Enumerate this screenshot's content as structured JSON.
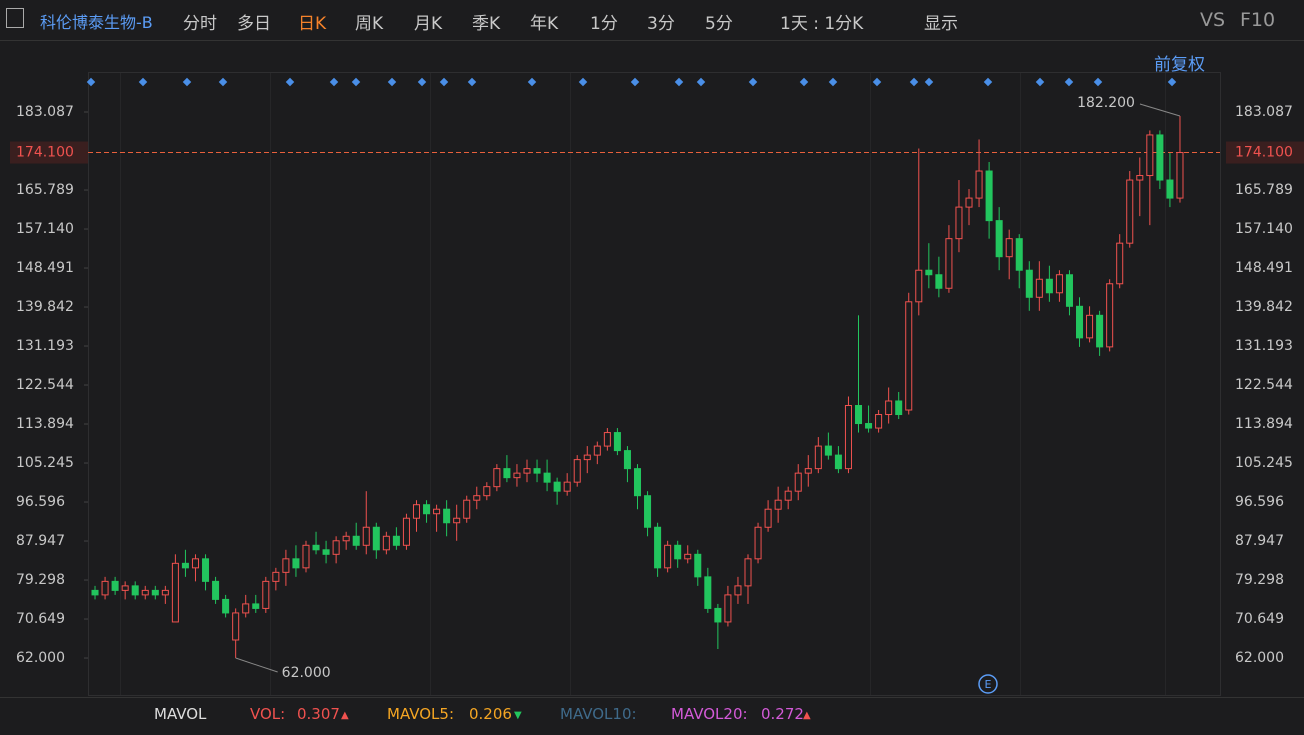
{
  "toolbar": {
    "stock_name": "科伦博泰生物-B",
    "tabs": [
      "分时",
      "多日",
      "日K",
      "周K",
      "月K",
      "季K",
      "年K",
      "1分",
      "3分",
      "5分"
    ],
    "active_tab": 2,
    "period": "1天 : 1分K",
    "display": "显示",
    "vs": "VS",
    "f10": "F10"
  },
  "adjust": "前复权",
  "chart_data": {
    "type": "candlestick",
    "open": [
      77,
      76,
      79,
      77,
      78,
      76,
      77,
      76,
      70,
      83,
      82,
      84,
      79,
      75,
      66,
      72,
      74,
      73,
      79,
      81,
      84,
      82,
      87,
      86,
      85,
      88,
      89,
      87,
      91,
      86,
      89,
      87,
      93,
      96,
      94,
      95,
      92,
      93,
      97,
      98,
      100,
      104,
      102,
      103,
      104,
      103,
      101,
      99,
      101,
      106,
      107,
      109,
      112,
      108,
      104,
      98,
      91,
      82,
      87,
      84,
      85,
      80,
      73,
      70,
      76,
      78,
      84,
      91,
      95,
      97,
      99,
      103,
      104,
      109,
      107,
      104,
      118,
      114,
      113,
      116,
      119,
      117,
      141,
      148,
      147,
      144,
      155,
      162,
      164,
      170,
      159,
      151,
      155,
      148,
      142,
      146,
      143,
      147,
      140,
      133,
      138,
      131,
      145,
      154,
      168,
      169,
      178,
      168,
      164
    ],
    "high": [
      78,
      80,
      80,
      79,
      79,
      78,
      78,
      78,
      85,
      86,
      85,
      85,
      80,
      76,
      73,
      76,
      76,
      80,
      82,
      86,
      87,
      88,
      90,
      88,
      89,
      90,
      92,
      99,
      92,
      90,
      91,
      94,
      97,
      97,
      96,
      97,
      96,
      98,
      100,
      101,
      105,
      107,
      105,
      106,
      106,
      106,
      102,
      103,
      107,
      109,
      110,
      113,
      113,
      109,
      105,
      99,
      92,
      88,
      88,
      87,
      86,
      82,
      74,
      78,
      80,
      85,
      92,
      97,
      100,
      100,
      105,
      107,
      111,
      112,
      109,
      120,
      138,
      118,
      117,
      122,
      121,
      143,
      175,
      154,
      151,
      158,
      168,
      166,
      177,
      172,
      162,
      157,
      156,
      150,
      150,
      149,
      148,
      148,
      142,
      140,
      139,
      146,
      156,
      170,
      173,
      179,
      179,
      174,
      182.2
    ],
    "low": [
      75,
      75,
      76,
      75,
      75,
      75,
      75,
      74,
      70,
      80,
      79,
      77,
      74,
      71,
      62,
      71,
      72,
      72,
      77,
      78,
      80,
      81,
      85,
      83,
      83,
      86,
      86,
      85,
      84,
      85,
      86,
      86,
      90,
      92,
      90,
      89,
      88,
      92,
      95,
      97,
      99,
      101,
      100,
      101,
      101,
      99,
      96,
      98,
      100,
      103,
      105,
      108,
      107,
      101,
      95,
      89,
      80,
      81,
      82,
      83,
      78,
      72,
      64,
      69,
      74,
      74,
      83,
      90,
      92,
      95,
      97,
      100,
      103,
      106,
      103,
      103,
      112,
      112,
      112,
      114,
      115,
      116,
      138,
      144,
      142,
      143,
      152,
      158,
      162,
      155,
      148,
      146,
      144,
      139,
      139,
      141,
      141,
      138,
      131,
      132,
      129,
      130,
      144,
      153,
      160,
      158,
      166,
      162,
      163
    ],
    "close": [
      76,
      79,
      77,
      78,
      76,
      77,
      76,
      77,
      83,
      82,
      84,
      79,
      75,
      72,
      72,
      74,
      73,
      79,
      81,
      84,
      82,
      87,
      86,
      85,
      88,
      89,
      87,
      91,
      86,
      89,
      87,
      93,
      96,
      94,
      95,
      92,
      93,
      97,
      98,
      100,
      104,
      102,
      103,
      104,
      103,
      101,
      99,
      101,
      106,
      107,
      109,
      112,
      108,
      104,
      98,
      91,
      82,
      87,
      84,
      85,
      80,
      73,
      70,
      76,
      78,
      84,
      91,
      95,
      97,
      99,
      103,
      104,
      109,
      107,
      104,
      118,
      114,
      113,
      116,
      119,
      116,
      141,
      148,
      147,
      144,
      155,
      162,
      164,
      170,
      159,
      151,
      155,
      148,
      142,
      146,
      143,
      147,
      140,
      133,
      138,
      131,
      145,
      154,
      168,
      169,
      178,
      168,
      164,
      174.1
    ],
    "up_color": "#f0524f",
    "down_color": "#22c55e",
    "ylim": [
      53.8,
      186.86
    ],
    "yticks": [
      {
        "value": 62,
        "label": "62.000"
      },
      70.649,
      79.298,
      87.947,
      96.596,
      105.245,
      113.894,
      122.544,
      131.193,
      139.842,
      148.491,
      {
        "value": 157.14,
        "label": "157.140"
      },
      165.789,
      183.087
    ],
    "current_price": {
      "value": 174.1,
      "label": "174.100"
    },
    "high_label": {
      "value": 182.2,
      "label": "182.200"
    },
    "low_label": {
      "value": 62,
      "label": "62.000"
    }
  },
  "indicator": {
    "name": "MAVOL",
    "vol_label": "VOL:",
    "vol": 0.307,
    "mavol5_label": "MAVOL5:",
    "mavol5": 0.206,
    "mavol10_label": "MAVOL10:",
    "mavol20_label": "MAVOL20:",
    "mavol20": 0.272
  }
}
